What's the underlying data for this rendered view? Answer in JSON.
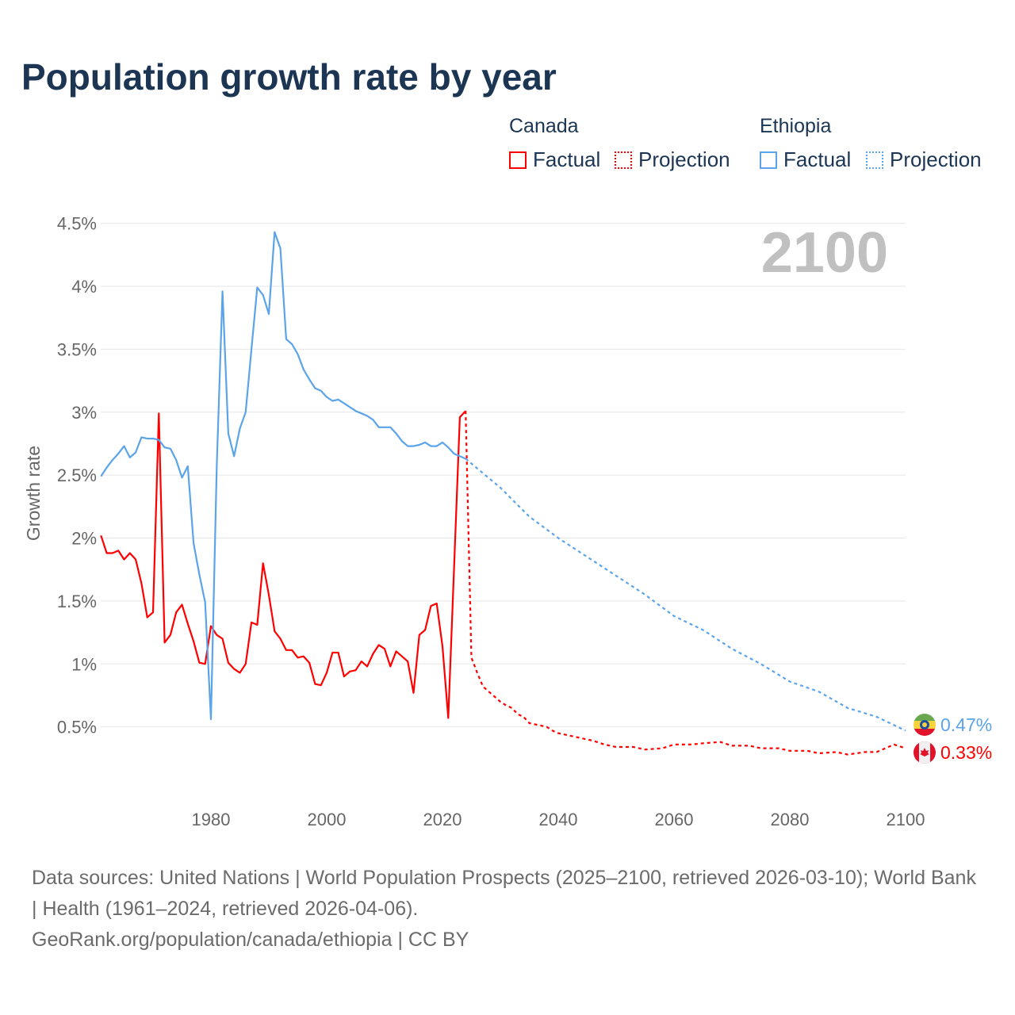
{
  "title": "Population growth rate by year",
  "legend": {
    "groups": [
      {
        "name": "Canada",
        "color": "#ff0000",
        "factual": "Factual",
        "projection": "Projection"
      },
      {
        "name": "Ethiopia",
        "color": "#5ba4ea",
        "factual": "Factual",
        "projection": "Projection"
      }
    ]
  },
  "year_label": "2100",
  "end_labels": {
    "ethiopia": "0.47%",
    "canada": "0.33%"
  },
  "footer": {
    "sources": "Data sources: United Nations | World Population Prospects (2025–2100, retrieved 2026-03-10); World Bank | Health (1961–2024, retrieved 2026-04-06).",
    "credit": "GeoRank.org/population/canada/ethiopia | CC BY"
  },
  "chart_data": {
    "type": "line",
    "title": "Population growth rate by year",
    "xlabel": "",
    "ylabel": "Growth rate",
    "xlim": [
      1961,
      2100
    ],
    "ylim": [
      0,
      4.6
    ],
    "xticks": [
      1980,
      2000,
      2020,
      2040,
      2060,
      2080,
      2100
    ],
    "yticks": [
      0.5,
      1,
      1.5,
      2,
      2.5,
      3,
      3.5,
      4,
      4.5
    ],
    "ytick_labels": [
      "0.5%",
      "1%",
      "1.5%",
      "2%",
      "2.5%",
      "3%",
      "3.5%",
      "4%",
      "4.5%"
    ],
    "series": [
      {
        "name": "Canada Factual",
        "color": "#ff0000",
        "dashed": false,
        "x": [
          1961,
          1962,
          1963,
          1964,
          1965,
          1966,
          1967,
          1968,
          1969,
          1970,
          1971,
          1972,
          1973,
          1974,
          1975,
          1976,
          1977,
          1978,
          1979,
          1980,
          1981,
          1982,
          1983,
          1984,
          1985,
          1986,
          1987,
          1988,
          1989,
          1990,
          1991,
          1992,
          1993,
          1994,
          1995,
          1996,
          1997,
          1998,
          1999,
          2000,
          2001,
          2002,
          2003,
          2004,
          2005,
          2006,
          2007,
          2008,
          2009,
          2010,
          2011,
          2012,
          2013,
          2014,
          2015,
          2016,
          2017,
          2018,
          2019,
          2020,
          2021,
          2022,
          2023,
          2024
        ],
        "y": [
          2.02,
          1.88,
          1.88,
          1.9,
          1.83,
          1.88,
          1.83,
          1.64,
          1.37,
          1.41,
          2.99,
          1.17,
          1.23,
          1.41,
          1.47,
          1.32,
          1.18,
          1.01,
          1.0,
          1.3,
          1.23,
          1.2,
          1.01,
          0.96,
          0.93,
          1.0,
          1.33,
          1.31,
          1.8,
          1.55,
          1.26,
          1.2,
          1.11,
          1.11,
          1.05,
          1.06,
          1.01,
          0.84,
          0.83,
          0.93,
          1.09,
          1.09,
          0.9,
          0.94,
          0.95,
          1.02,
          0.98,
          1.08,
          1.15,
          1.12,
          0.98,
          1.1,
          1.06,
          1.02,
          0.77,
          1.23,
          1.27,
          1.46,
          1.48,
          1.14,
          0.57,
          1.76,
          2.96,
          3.01
        ]
      },
      {
        "name": "Canada Projection",
        "color": "#ff0000",
        "dashed": true,
        "x": [
          2024,
          2025,
          2026,
          2027,
          2028,
          2029,
          2030,
          2031,
          2032,
          2033,
          2034,
          2035,
          2036,
          2037,
          2038,
          2039,
          2040,
          2043,
          2046,
          2048,
          2050,
          2053,
          2055,
          2058,
          2060,
          2063,
          2065,
          2068,
          2070,
          2073,
          2075,
          2078,
          2080,
          2083,
          2085,
          2088,
          2090,
          2093,
          2095,
          2098,
          2100
        ],
        "y": [
          3.01,
          1.05,
          0.93,
          0.82,
          0.78,
          0.74,
          0.7,
          0.67,
          0.65,
          0.6,
          0.58,
          0.53,
          0.52,
          0.51,
          0.5,
          0.47,
          0.45,
          0.42,
          0.39,
          0.36,
          0.34,
          0.34,
          0.32,
          0.33,
          0.36,
          0.36,
          0.37,
          0.38,
          0.35,
          0.35,
          0.33,
          0.33,
          0.31,
          0.31,
          0.29,
          0.3,
          0.28,
          0.3,
          0.3,
          0.36,
          0.33
        ]
      },
      {
        "name": "Ethiopia Factual",
        "color": "#5ba4ea",
        "dashed": false,
        "x": [
          1961,
          1962,
          1963,
          1964,
          1965,
          1966,
          1967,
          1968,
          1969,
          1970,
          1971,
          1972,
          1973,
          1974,
          1975,
          1976,
          1977,
          1978,
          1979,
          1980,
          1981,
          1982,
          1983,
          1984,
          1985,
          1986,
          1987,
          1988,
          1989,
          1990,
          1991,
          1992,
          1993,
          1994,
          1995,
          1996,
          1997,
          1998,
          1999,
          2000,
          2001,
          2002,
          2003,
          2004,
          2005,
          2006,
          2007,
          2008,
          2009,
          2010,
          2011,
          2012,
          2013,
          2014,
          2015,
          2016,
          2017,
          2018,
          2019,
          2020,
          2021,
          2022,
          2023,
          2024
        ],
        "y": [
          2.49,
          2.56,
          2.62,
          2.67,
          2.73,
          2.64,
          2.68,
          2.8,
          2.79,
          2.79,
          2.78,
          2.72,
          2.71,
          2.62,
          2.48,
          2.57,
          1.96,
          1.71,
          1.49,
          0.56,
          2.56,
          3.96,
          2.83,
          2.65,
          2.87,
          3.0,
          3.5,
          3.99,
          3.93,
          3.78,
          4.43,
          4.3,
          3.58,
          3.54,
          3.46,
          3.34,
          3.26,
          3.19,
          3.17,
          3.12,
          3.09,
          3.1,
          3.07,
          3.04,
          3.01,
          2.99,
          2.97,
          2.94,
          2.88,
          2.88,
          2.88,
          2.83,
          2.77,
          2.73,
          2.73,
          2.74,
          2.76,
          2.73,
          2.73,
          2.76,
          2.72,
          2.67,
          2.65,
          2.63
        ]
      },
      {
        "name": "Ethiopia Projection",
        "color": "#5ba4ea",
        "dashed": true,
        "x": [
          2024,
          2030,
          2035,
          2040,
          2045,
          2050,
          2055,
          2060,
          2065,
          2070,
          2075,
          2080,
          2085,
          2090,
          2095,
          2100
        ],
        "y": [
          2.63,
          2.4,
          2.17,
          2.0,
          1.85,
          1.7,
          1.55,
          1.38,
          1.27,
          1.12,
          1.0,
          0.86,
          0.78,
          0.65,
          0.58,
          0.47
        ]
      }
    ]
  }
}
